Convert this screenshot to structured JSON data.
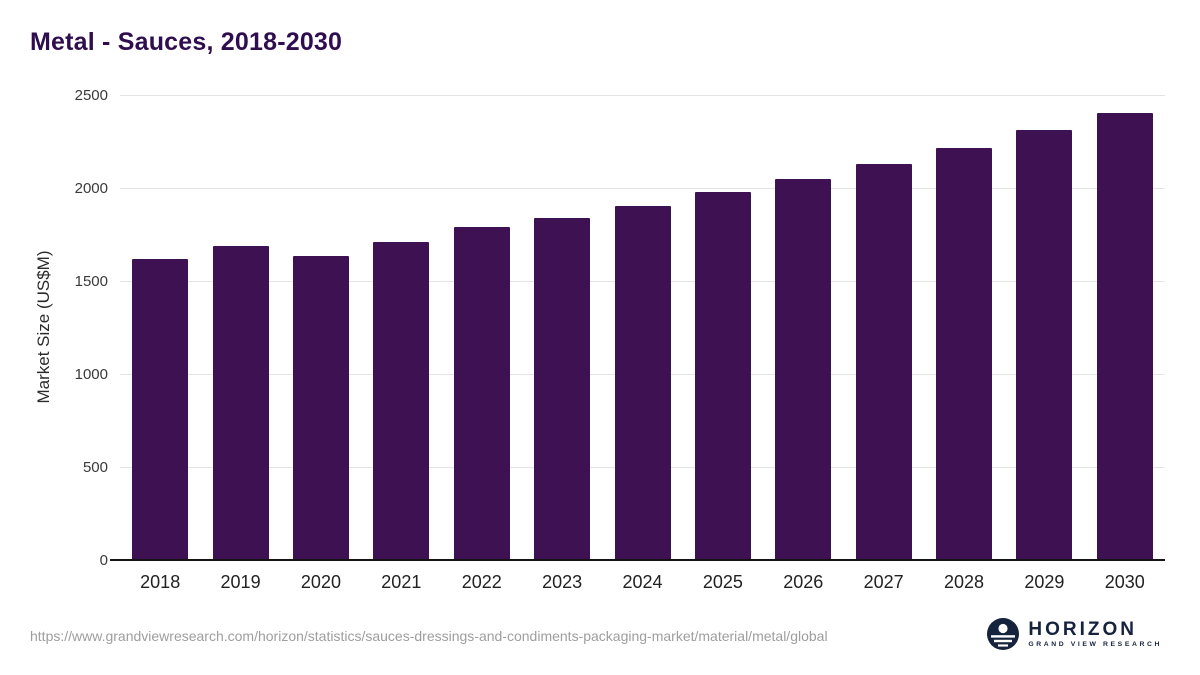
{
  "title": "Metal - Sauces, 2018-2030",
  "footer": {
    "source_url": "https://www.grandviewresearch.com/horizon/statistics/sauces-dressings-and-condiments-packaging-market/material/metal/global"
  },
  "logo": {
    "name": "HORIZON",
    "subtitle": "GRAND VIEW RESEARCH",
    "icon": "horizon-circle-icon",
    "color": "#15233c"
  },
  "colors": {
    "bar": "#3e1153",
    "title": "#2f0e50",
    "gridline": "#e4e4e4",
    "axis_line": "#141414",
    "background": "#ffffff"
  },
  "chart_data": {
    "type": "bar",
    "title": "Metal - Sauces, 2018-2030",
    "categories": [
      "2018",
      "2019",
      "2020",
      "2021",
      "2022",
      "2023",
      "2024",
      "2025",
      "2026",
      "2027",
      "2028",
      "2029",
      "2030"
    ],
    "values": [
      1620,
      1690,
      1635,
      1710,
      1790,
      1840,
      1905,
      1980,
      2050,
      2130,
      2215,
      2310,
      2405
    ],
    "xlabel": "",
    "ylabel": "Market Size (US$M)",
    "ylim": [
      0,
      2500
    ],
    "yticks": [
      0,
      500,
      1000,
      1500,
      2000,
      2500
    ],
    "grid": true,
    "legend": false,
    "bar_color": "#3e1153"
  }
}
